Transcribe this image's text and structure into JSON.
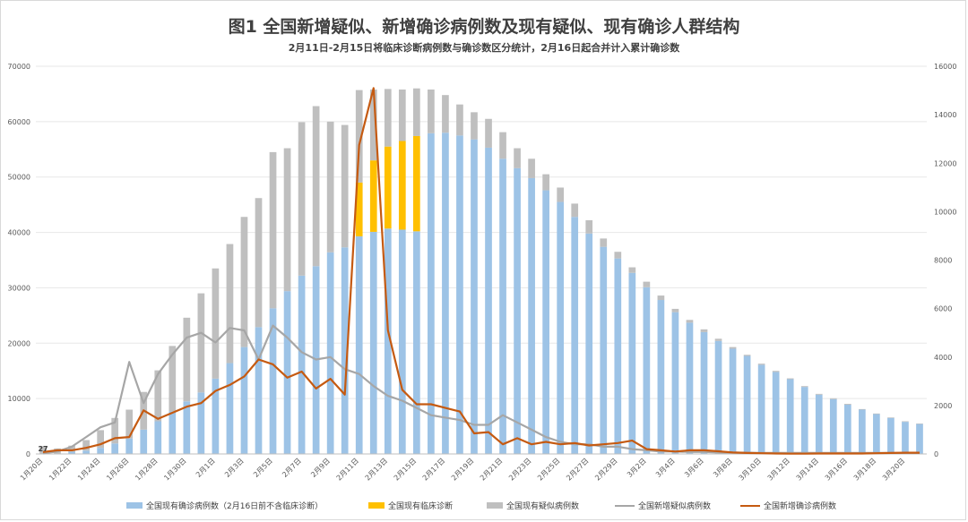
{
  "title": "图1 全国新增疑似、新增确诊病例数及现有疑似、现有确诊人群结构",
  "subtitle": "2月11日-2月15日将临床诊断病例数与确诊数区分统计，2月16日起合并计入累计确诊数",
  "colors": {
    "current_confirmed": "#9dc3e6",
    "clinical": "#ffc000",
    "current_suspected": "#bfbfbf",
    "new_suspected": "#a6a6a6",
    "new_confirmed": "#c55a11",
    "axis_text": "#595959",
    "grid": "#e7e7e7"
  },
  "chart_data": {
    "type": "bar",
    "categories": [
      "1月20日",
      "1月21日",
      "1月22日",
      "1月23日",
      "1月24日",
      "1月25日",
      "1月26日",
      "1月27日",
      "1月28日",
      "1月29日",
      "1月30日",
      "1月31日",
      "2月1日",
      "2月2日",
      "2月3日",
      "2月4日",
      "2月5日",
      "2月6日",
      "2月7日",
      "2月8日",
      "2月9日",
      "2月10日",
      "2月11日",
      "2月12日",
      "2月13日",
      "2月14日",
      "2月15日",
      "2月16日",
      "2月17日",
      "2月18日",
      "2月19日",
      "2月20日",
      "2月21日",
      "2月22日",
      "2月23日",
      "2月24日",
      "2月25日",
      "2月26日",
      "2月27日",
      "2月28日",
      "2月29日",
      "3月1日",
      "3月2日",
      "3月3日",
      "3月4日",
      "3月5日",
      "3月6日",
      "3月7日",
      "3月8日",
      "3月9日",
      "3月10日",
      "3月11日",
      "3月12日",
      "3月13日",
      "3月14日",
      "3月15日",
      "3月16日",
      "3月17日",
      "3月18日",
      "3月19日",
      "3月20日",
      "3月21日"
    ],
    "x_tick_labels": [
      "1月20日",
      "1月22日",
      "1月24日",
      "1月26日",
      "1月28日",
      "1月30日",
      "2月1日",
      "2月3日",
      "2月5日",
      "2月7日",
      "2月9日",
      "2月11日",
      "2月13日",
      "2月15日",
      "2月17日",
      "2月19日",
      "2月21日",
      "2月23日",
      "2月25日",
      "2月27日",
      "2月29日",
      "3月2日",
      "3月4日",
      "3月6日",
      "3月8日",
      "3月10日",
      "3月12日",
      "3月14日",
      "3月16日",
      "3月18日",
      "3月20日"
    ],
    "annotation": "27",
    "y_left": {
      "min": 0,
      "max": 70000,
      "ticks": [
        "0",
        "10000",
        "20000",
        "30000",
        "40000",
        "50000",
        "60000",
        "70000"
      ]
    },
    "y_right": {
      "min": 0,
      "max": 16000,
      "ticks": [
        "0",
        "2000",
        "4000",
        "6000",
        "8000",
        "10000",
        "12000",
        "14000",
        "16000"
      ]
    },
    "grid": true,
    "legend_position": "bottom",
    "stacking": "current_confirmed and clinical and current_suspected stacked bars on left axis; lines on right axis",
    "series": [
      {
        "name": "全国现有确诊病例数（2月16日前不含临床诊断）",
        "type": "bar",
        "axis": "left",
        "values": [
          0,
          0,
          400,
          600,
          1100,
          1900,
          2800,
          4400,
          5900,
          7700,
          9500,
          11100,
          13600,
          16400,
          19300,
          22900,
          26300,
          29400,
          32200,
          33900,
          36400,
          37300,
          39300,
          40100,
          40700,
          40500,
          40200,
          57900,
          58000,
          57500,
          56800,
          55300,
          53300,
          51600,
          49800,
          47600,
          45500,
          42800,
          39800,
          37400,
          35300,
          32700,
          30100,
          27800,
          25600,
          23700,
          22000,
          20400,
          19000,
          17700,
          16100,
          14800,
          13500,
          12100,
          10700,
          9900,
          8900,
          8000,
          7200,
          6500,
          5800,
          5400
        ]
      },
      {
        "name": "全国现有临床诊断",
        "type": "bar",
        "axis": "left",
        "values": [
          0,
          0,
          0,
          0,
          0,
          0,
          0,
          0,
          0,
          0,
          0,
          0,
          0,
          0,
          0,
          0,
          0,
          0,
          0,
          0,
          0,
          0,
          9700,
          12900,
          14800,
          16000,
          17200,
          0,
          0,
          0,
          0,
          0,
          0,
          0,
          0,
          0,
          0,
          0,
          0,
          0,
          0,
          0,
          0,
          0,
          0,
          0,
          0,
          0,
          0,
          0,
          0,
          0,
          0,
          0,
          0,
          0,
          0,
          0,
          0,
          0,
          0,
          0
        ]
      },
      {
        "name": "全国现有疑似病例数",
        "type": "bar",
        "axis": "left",
        "values": [
          1400,
          1000,
          1100,
          1900,
          3200,
          4600,
          5200,
          6800,
          9200,
          11800,
          15100,
          17900,
          19900,
          21500,
          23500,
          23300,
          28200,
          25800,
          27700,
          28900,
          23600,
          22100,
          16700,
          12800,
          10400,
          9300,
          8600,
          7900,
          6800,
          5600,
          4900,
          5200,
          4800,
          3600,
          3500,
          2900,
          2600,
          2400,
          2400,
          1500,
          1200,
          1000,
          1000,
          800,
          600,
          500,
          500,
          400,
          300,
          200,
          200,
          200,
          150,
          150,
          150,
          150,
          150,
          100,
          100,
          100,
          100,
          100
        ]
      },
      {
        "name": "全国新增疑似病例数",
        "type": "line",
        "axis": "right",
        "values": [
          27,
          100,
          300,
          700,
          1100,
          1300,
          3800,
          2100,
          3300,
          4100,
          4800,
          5000,
          4600,
          5200,
          5100,
          3900,
          5300,
          4800,
          4200,
          3900,
          4000,
          3500,
          3300,
          2800,
          2400,
          2200,
          1900,
          1600,
          1500,
          1400,
          1200,
          1200,
          1600,
          1300,
          1000,
          700,
          500,
          400,
          400,
          300,
          300,
          200,
          150,
          100,
          100,
          80,
          80,
          60,
          60,
          50,
          40,
          40,
          40,
          40,
          40,
          40,
          40,
          40,
          40,
          40,
          40,
          40
        ]
      },
      {
        "name": "全国新增确诊病例数",
        "type": "line",
        "axis": "right",
        "values": [
          77,
          150,
          150,
          250,
          400,
          650,
          700,
          1800,
          1450,
          1700,
          1950,
          2100,
          2600,
          2850,
          3200,
          3900,
          3700,
          3150,
          3400,
          2700,
          3100,
          2450,
          12750,
          15100,
          5100,
          2650,
          2050,
          2050,
          1900,
          1750,
          850,
          900,
          400,
          650,
          400,
          500,
          400,
          450,
          350,
          400,
          450,
          550,
          200,
          150,
          100,
          150,
          150,
          110,
          60,
          40,
          30,
          20,
          10,
          10,
          20,
          20,
          20,
          20,
          30,
          40,
          50,
          50
        ]
      }
    ]
  }
}
